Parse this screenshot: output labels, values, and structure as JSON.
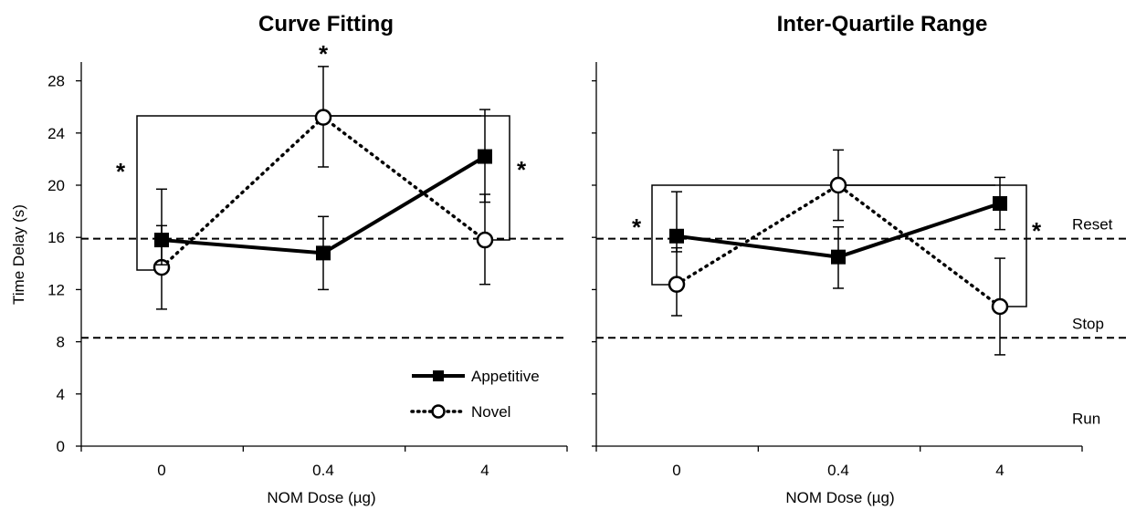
{
  "chart_data": [
    {
      "type": "line",
      "title": "Curve Fitting",
      "xlabel": "NOM Dose (µg)",
      "ylabel": "Time Delay (s)",
      "categories": [
        "0",
        "0.4",
        "4"
      ],
      "ylim": [
        0,
        29.5
      ],
      "yticks": [
        0,
        4,
        8,
        12,
        16,
        20,
        24,
        28
      ],
      "series": [
        {
          "name": "Appetitive",
          "values": [
            15.8,
            14.8,
            22.2
          ],
          "err_low": [
            13.9,
            12.0,
            18.7
          ],
          "err_high": [
            19.7,
            17.6,
            25.8
          ],
          "line": "solid",
          "marker": "filled-square"
        },
        {
          "name": "Novel",
          "values": [
            13.7,
            25.2,
            15.8
          ],
          "err_low": [
            10.5,
            21.4,
            12.4
          ],
          "err_high": [
            16.9,
            29.1,
            19.3
          ],
          "line": "dotted",
          "marker": "open-circle"
        }
      ],
      "reference_lines": [
        {
          "y": 15.9,
          "style": "dashed",
          "label": ""
        },
        {
          "y": 8.3,
          "style": "dashed",
          "label": ""
        }
      ],
      "annotations": [
        "*",
        "*",
        "*"
      ],
      "legend": "bottom-right"
    },
    {
      "type": "line",
      "title": "Inter-Quartile Range",
      "xlabel": "NOM Dose (µg)",
      "ylabel": "",
      "categories": [
        "0",
        "0.4",
        "4"
      ],
      "ylim": [
        0,
        29.5
      ],
      "yticks": [
        0,
        4,
        8,
        12,
        16,
        20,
        24,
        28
      ],
      "series": [
        {
          "name": "Appetitive",
          "values": [
            16.1,
            14.5,
            18.6
          ],
          "err_low": [
            14.9,
            12.1,
            16.6
          ],
          "err_high": [
            19.5,
            16.8,
            20.6
          ],
          "line": "solid",
          "marker": "filled-square"
        },
        {
          "name": "Novel",
          "values": [
            12.4,
            20.0,
            10.7
          ],
          "err_low": [
            10.0,
            17.3,
            7.0
          ],
          "err_high": [
            15.2,
            22.7,
            14.4
          ],
          "line": "dotted",
          "marker": "open-circle"
        }
      ],
      "reference_lines": [
        {
          "y": 15.9,
          "style": "dashed",
          "label": "Reset"
        },
        {
          "y": 8.3,
          "style": "dashed",
          "label": "Stop"
        },
        {
          "y": 1.0,
          "style": "none",
          "label": "Run"
        }
      ],
      "annotations": [
        "*",
        "*"
      ]
    }
  ]
}
